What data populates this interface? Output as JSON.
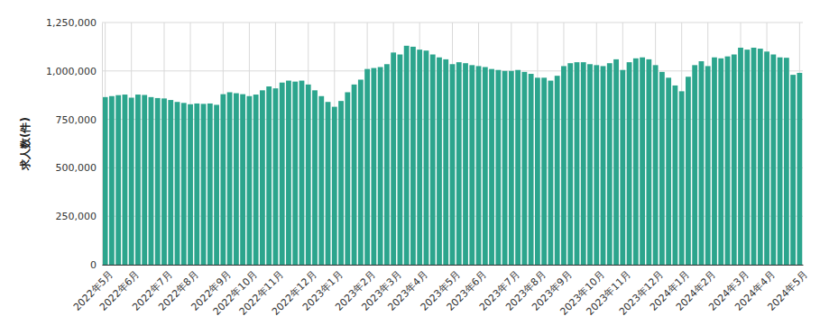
{
  "chart_data": {
    "type": "bar",
    "y_label": "求人数(件)",
    "color": "#2ca58d",
    "grid": true,
    "categories": [
      "2022年5月",
      null,
      null,
      null,
      "2022年6月",
      null,
      null,
      null,
      null,
      "2022年7月",
      null,
      null,
      null,
      "2022年8月",
      null,
      null,
      null,
      null,
      "2022年9月",
      null,
      null,
      null,
      "2022年10月",
      null,
      null,
      null,
      "2022年11月",
      null,
      null,
      null,
      null,
      "2022年12月",
      null,
      null,
      null,
      "2023年1月",
      null,
      null,
      null,
      null,
      "2023年2月",
      null,
      null,
      null,
      "2023年3月",
      null,
      null,
      null,
      "2023年4月",
      null,
      null,
      null,
      null,
      "2023年5月",
      null,
      null,
      null,
      "2023年6月",
      null,
      null,
      null,
      null,
      "2023年7月",
      null,
      null,
      null,
      "2023年8月",
      null,
      null,
      null,
      "2023年9月",
      null,
      null,
      null,
      null,
      "2023年10月",
      null,
      null,
      null,
      "2023年11月",
      null,
      null,
      null,
      null,
      "2023年12月",
      null,
      null,
      null,
      "2024年1月",
      null,
      null,
      null,
      "2024年2月",
      null,
      null,
      null,
      null,
      "2024年3月",
      null,
      null,
      null,
      "2024年4月",
      null,
      null,
      null,
      null,
      "2024年5月"
    ],
    "values": [
      865000,
      870000,
      875000,
      878000,
      862000,
      878000,
      876000,
      865000,
      860000,
      858000,
      850000,
      840000,
      835000,
      828000,
      832000,
      830000,
      832000,
      825000,
      880000,
      890000,
      885000,
      880000,
      870000,
      878000,
      900000,
      920000,
      910000,
      940000,
      950000,
      945000,
      950000,
      930000,
      900000,
      870000,
      840000,
      815000,
      845000,
      890000,
      930000,
      955000,
      1010000,
      1015000,
      1020000,
      1035000,
      1095000,
      1085000,
      1130000,
      1125000,
      1110000,
      1105000,
      1085000,
      1070000,
      1060000,
      1035000,
      1045000,
      1040000,
      1030000,
      1025000,
      1020000,
      1010000,
      1005000,
      1000000,
      1000000,
      1005000,
      995000,
      985000,
      965000,
      965000,
      950000,
      975000,
      1025000,
      1040000,
      1045000,
      1045000,
      1035000,
      1030000,
      1025000,
      1040000,
      1060000,
      1005000,
      1045000,
      1065000,
      1070000,
      1060000,
      1030000,
      995000,
      965000,
      925000,
      895000,
      970000,
      1030000,
      1050000,
      1025000,
      1070000,
      1065000,
      1075000,
      1085000,
      1120000,
      1110000,
      1120000,
      1115000,
      1100000,
      1085000,
      1070000,
      1068000,
      980000,
      990000
    ],
    "ylim": [
      0,
      1250000
    ],
    "yticks": [
      0,
      {
        "value": 250000,
        "label": "250,000"
      },
      {
        "value": 500000,
        "label": "500,000"
      },
      {
        "value": 750000,
        "label": "750,000"
      },
      {
        "value": 1000000,
        "label": "1,000,000"
      },
      {
        "value": 1250000,
        "label": "1,250,000"
      }
    ]
  }
}
